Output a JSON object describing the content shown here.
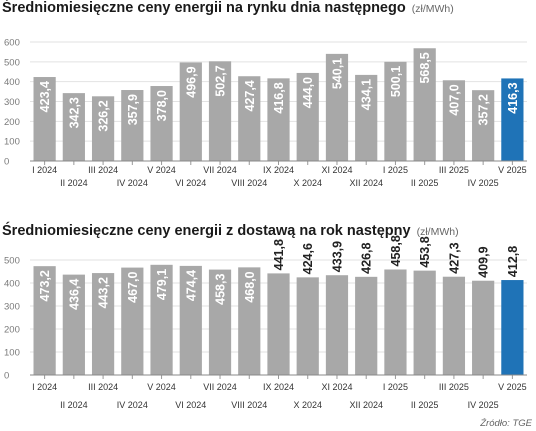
{
  "source_label": "Źródło: TGE",
  "colors": {
    "bar": "#a8a8a8",
    "highlight": "#1f73b7",
    "grid": "#e2e2e2"
  },
  "chart_data": [
    {
      "type": "bar",
      "title": "Średniomiesięczne ceny energii na rynku dnia następnego",
      "unit": "(zł/MWh)",
      "categories": [
        "I 2024",
        "II 2024",
        "III 2024",
        "IV 2024",
        "V 2024",
        "VI 2024",
        "VII 2024",
        "VIII 2024",
        "IX 2024",
        "X 2024",
        "XI 2024",
        "XII 2024",
        "I 2025",
        "II 2025",
        "III 2025",
        "IV 2025",
        "V 2025"
      ],
      "values": [
        423.4,
        342.3,
        326.2,
        357.9,
        378.0,
        496.9,
        502.7,
        427.4,
        416.8,
        444.0,
        540.1,
        434.1,
        500.1,
        568.5,
        407.0,
        357.2,
        416.3
      ],
      "value_labels": [
        "423,4",
        "342,3",
        "326,2",
        "357,9",
        "378,0",
        "496,9",
        "502,7",
        "427,4",
        "416,8",
        "444,0",
        "540,1",
        "434,1",
        "500,1",
        "568,5",
        "407,0",
        "357,2",
        "416,3"
      ],
      "ylim": [
        0,
        600
      ],
      "yticks": [
        0,
        100,
        200,
        300,
        400,
        500,
        600
      ],
      "grid": true,
      "label_position": "inside-top",
      "highlight_last": true
    },
    {
      "type": "bar",
      "title": "Średniomiesięczne ceny energii z dostawą na rok następny",
      "unit": "(zł/MWh)",
      "categories": [
        "I 2024",
        "II 2024",
        "III 2024",
        "IV 2024",
        "V 2024",
        "VI 2024",
        "VII 2024",
        "VIII 2024",
        "IX 2024",
        "X 2024",
        "XI 2024",
        "XII 2024",
        "I 2025",
        "II 2025",
        "III 2025",
        "IV 2025",
        "V 2025"
      ],
      "values": [
        473.2,
        436.4,
        443.2,
        467.0,
        479.1,
        474.4,
        458.3,
        468.0,
        441.8,
        424.6,
        433.9,
        426.8,
        458.8,
        453.8,
        427.3,
        409.9,
        412.8
      ],
      "value_labels": [
        "473,2",
        "436,4",
        "443,2",
        "467,0",
        "479,1",
        "474,4",
        "458,3",
        "468,0",
        "441,8",
        "424,6",
        "433,9",
        "426,8",
        "458,8",
        "453,8",
        "427,3",
        "409,9",
        "412,8"
      ],
      "ylim": [
        0,
        500
      ],
      "yticks": [
        0,
        100,
        200,
        300,
        400,
        500
      ],
      "grid": true,
      "label_position": "mixed",
      "highlight_last": true
    }
  ]
}
